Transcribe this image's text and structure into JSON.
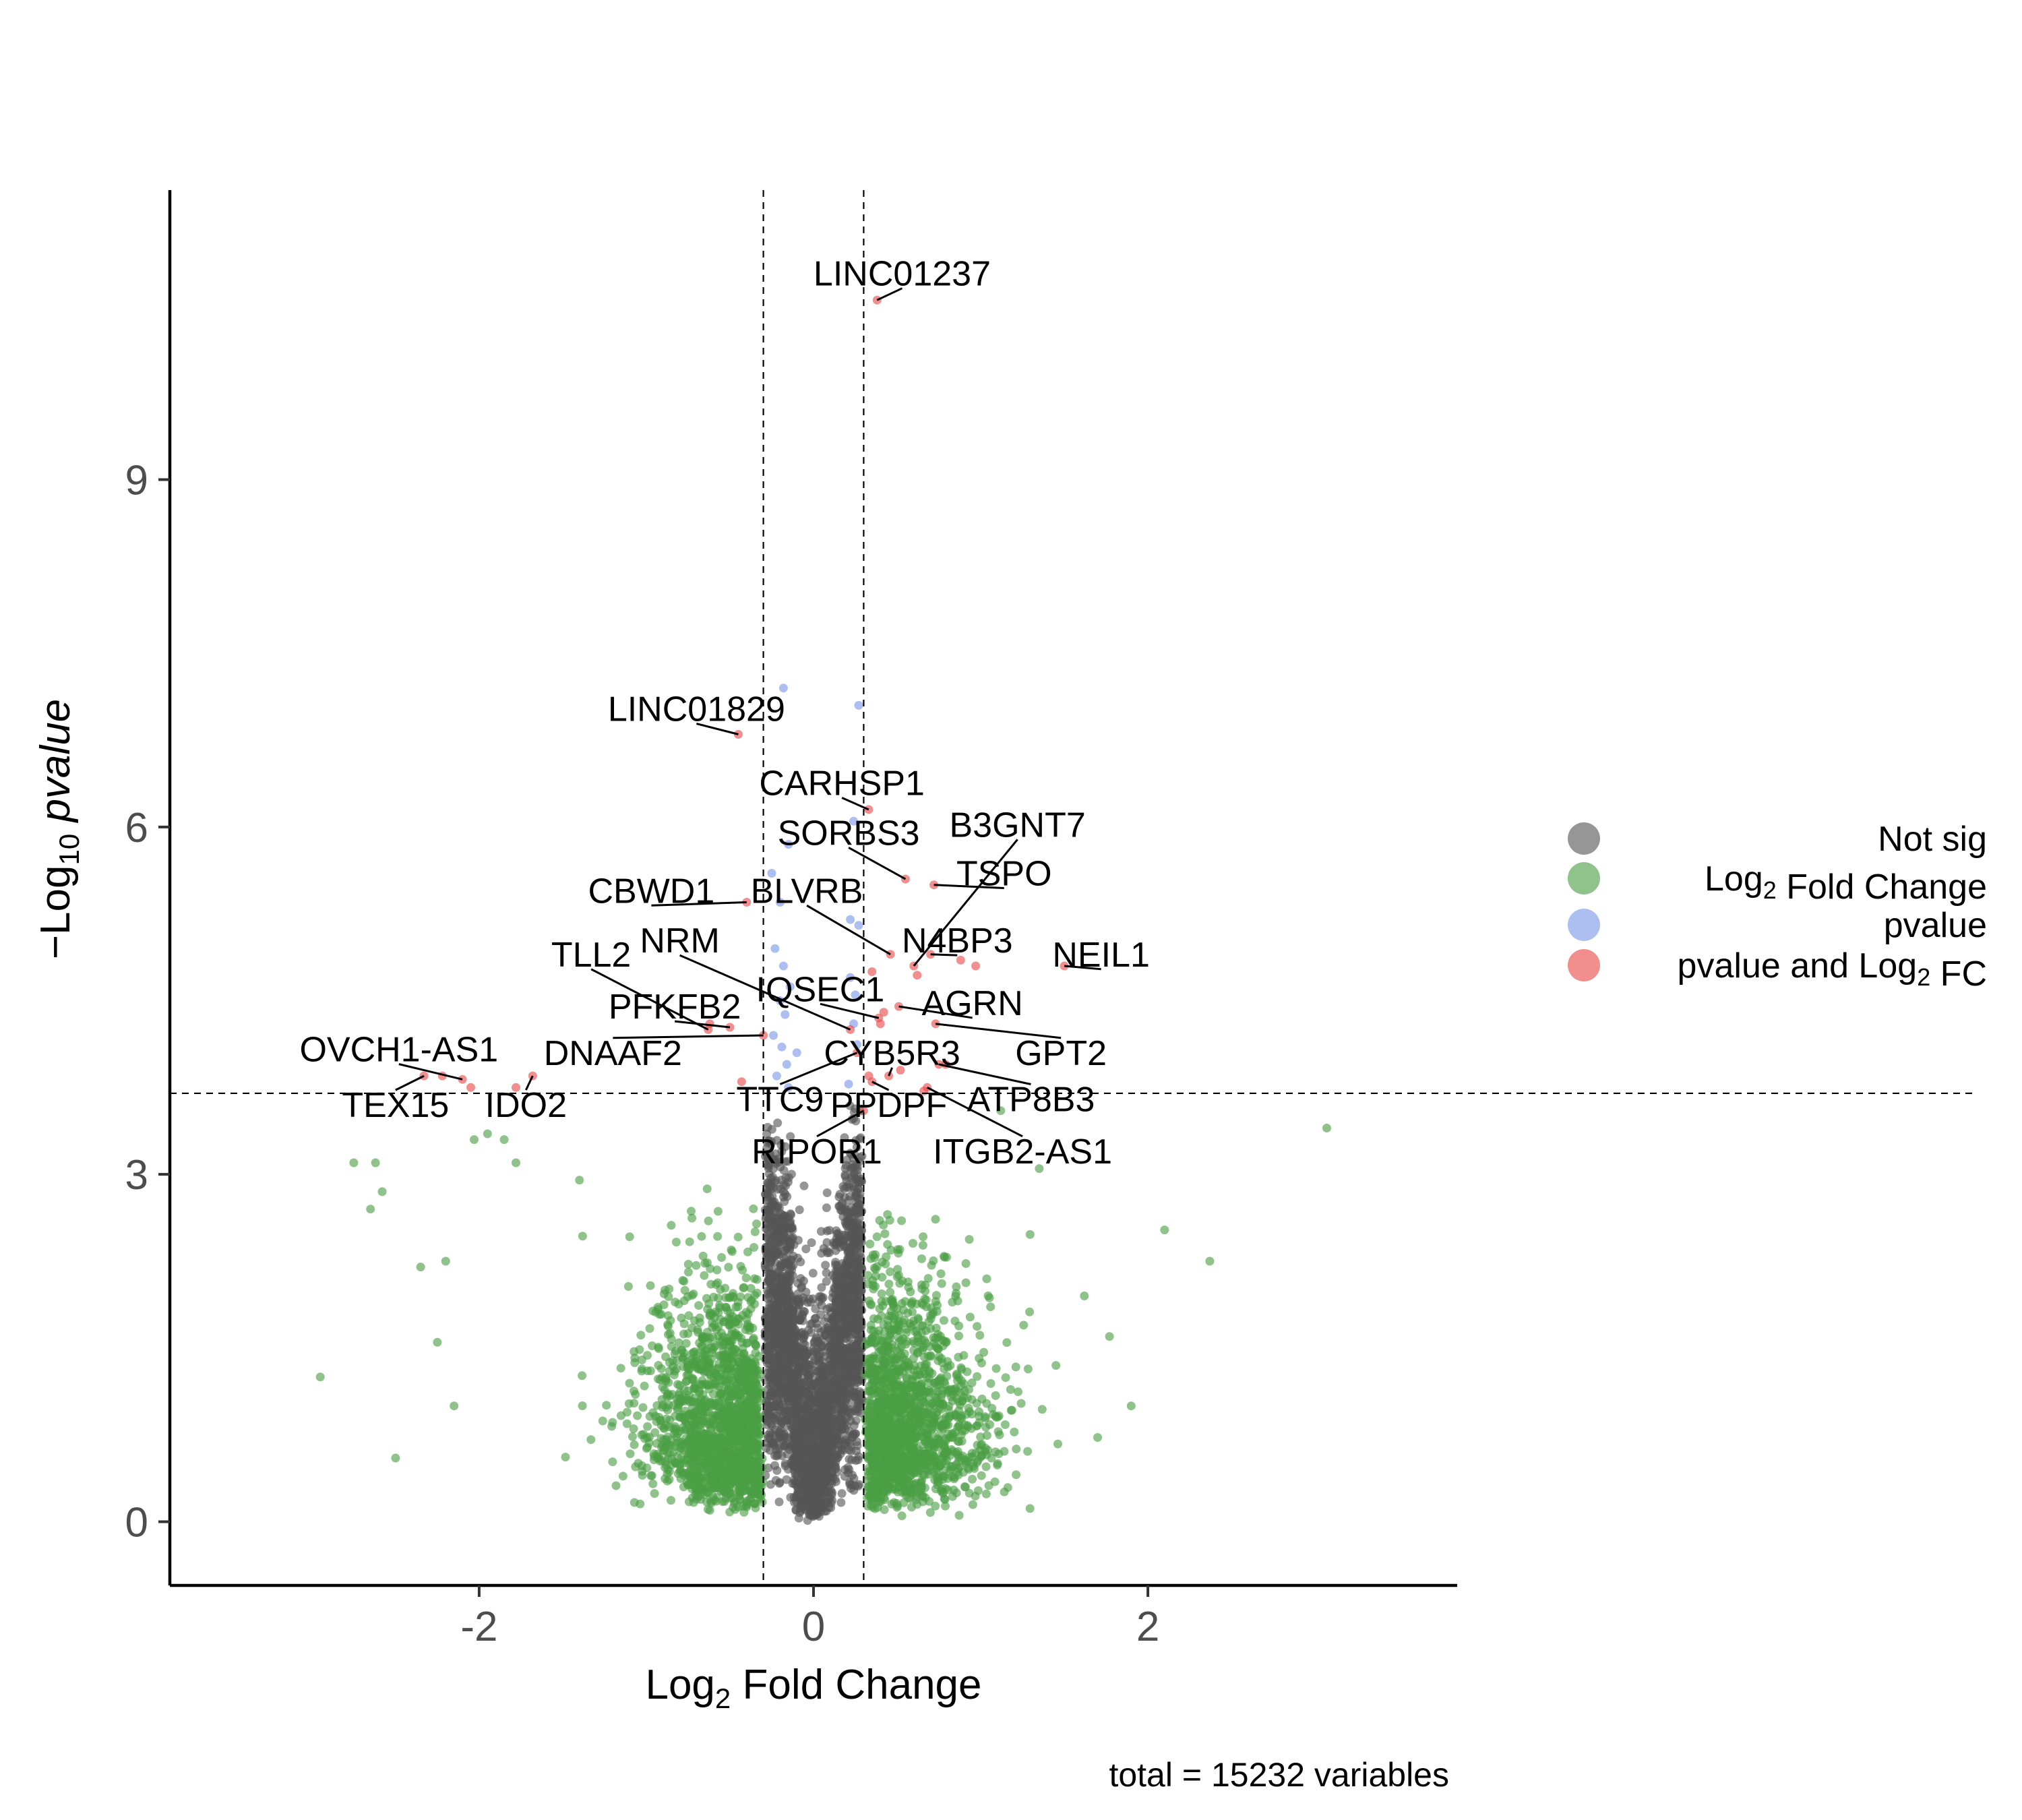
{
  "chart_data": {
    "type": "scatter",
    "xlabel": {
      "pre": "Log",
      "sub": "2",
      "post": " Fold Change"
    },
    "ylabel": {
      "pre": "−Log",
      "sub": "10",
      "post": " ",
      "ital": "pvalue"
    },
    "caption": "total = 15232 variables",
    "xlim": [
      -3.85,
      3.85
    ],
    "ylim": [
      -0.55,
      11.5
    ],
    "x_ticks": [
      -2,
      0,
      2
    ],
    "x_tick_labels": [
      "-2",
      "0",
      "2"
    ],
    "y_ticks": [
      0,
      3,
      6,
      9
    ],
    "y_tick_labels": [
      "0",
      "3",
      "6",
      "9"
    ],
    "fc_cutoff": 0.3,
    "p_cutoff_neglog10": 3.7,
    "grid": false,
    "legend_position": "right",
    "legend": [
      {
        "key": "ns",
        "parts": [
          {
            "t": "Not sig"
          }
        ]
      },
      {
        "key": "fc",
        "parts": [
          {
            "t": "Log"
          },
          {
            "t": "2",
            "sub": true
          },
          {
            "t": " Fold Change"
          }
        ]
      },
      {
        "key": "p",
        "parts": [
          {
            "t": "pvalue"
          }
        ]
      },
      {
        "key": "both",
        "parts": [
          {
            "t": "pvalue and Log"
          },
          {
            "t": "2",
            "sub": true
          },
          {
            "t": " FC"
          }
        ]
      }
    ],
    "colors": {
      "ns": "#555555",
      "fc": "#4a9e44",
      "p": "#7b96e8",
      "both": "#e84848"
    },
    "labeled_points": [
      {
        "name": "LINC01237",
        "x": 0.38,
        "y": 10.55,
        "lx": 0.53,
        "ly": 10.78
      },
      {
        "name": "LINC01829",
        "x": -0.45,
        "y": 6.8,
        "lx": -0.7,
        "ly": 7.02
      },
      {
        "name": "CARHSP1",
        "x": 0.33,
        "y": 6.15,
        "lx": 0.17,
        "ly": 6.38
      },
      {
        "name": "SORBS3",
        "x": 0.55,
        "y": 5.55,
        "lx": 0.21,
        "ly": 5.95
      },
      {
        "name": "B3GNT7",
        "x": 0.6,
        "y": 4.8,
        "lx": 1.22,
        "ly": 6.02
      },
      {
        "name": "TSPO",
        "x": 0.72,
        "y": 5.5,
        "lx": 1.14,
        "ly": 5.6
      },
      {
        "name": "CBWD1",
        "x": -0.4,
        "y": 5.35,
        "lx": -0.97,
        "ly": 5.45
      },
      {
        "name": "BLVRB",
        "x": 0.46,
        "y": 4.9,
        "lx": -0.04,
        "ly": 5.45
      },
      {
        "name": "N4BP3",
        "x": 0.7,
        "y": 4.9,
        "lx": 0.86,
        "ly": 5.02
      },
      {
        "name": "NRM",
        "x": 0.22,
        "y": 4.25,
        "lx": -0.8,
        "ly": 5.02
      },
      {
        "name": "TLL2",
        "x": -0.63,
        "y": 4.25,
        "lx": -1.33,
        "ly": 4.9
      },
      {
        "name": "NEIL1",
        "x": 1.5,
        "y": 4.8,
        "lx": 1.72,
        "ly": 4.9
      },
      {
        "name": "PFKFB2",
        "x": -0.5,
        "y": 4.27,
        "lx": -0.83,
        "ly": 4.45
      },
      {
        "name": "IQSEC1",
        "x": 0.39,
        "y": 4.35,
        "lx": 0.04,
        "ly": 4.6
      },
      {
        "name": "AGRN",
        "x": 0.51,
        "y": 4.45,
        "lx": 0.95,
        "ly": 4.48
      },
      {
        "name": "GPT2",
        "x": 0.73,
        "y": 4.3,
        "lx": 1.48,
        "ly": 4.05
      },
      {
        "name": "OVCH1-AS1",
        "x": -2.1,
        "y": 3.82,
        "lx": -2.48,
        "ly": 4.08
      },
      {
        "name": "DNAAF2",
        "x": -0.3,
        "y": 4.2,
        "lx": -1.2,
        "ly": 4.05
      },
      {
        "name": "CYB5R3",
        "x": 0.45,
        "y": 3.85,
        "lx": 0.47,
        "ly": 4.05
      },
      {
        "name": "TEX15",
        "x": -2.33,
        "y": 3.85,
        "lx": -2.5,
        "ly": 3.6
      },
      {
        "name": "IDO2",
        "x": -1.68,
        "y": 3.85,
        "lx": -1.72,
        "ly": 3.6
      },
      {
        "name": "TTC9",
        "x": 0.26,
        "y": 4.05,
        "lx": -0.2,
        "ly": 3.65
      },
      {
        "name": "PPDPF",
        "x": 0.35,
        "y": 3.8,
        "lx": 0.45,
        "ly": 3.6
      },
      {
        "name": "ATP8B3",
        "x": 0.75,
        "y": 3.95,
        "lx": 1.3,
        "ly": 3.65
      },
      {
        "name": "RIPOR1",
        "x": 0.3,
        "y": 3.55,
        "lx": 0.02,
        "ly": 3.2
      },
      {
        "name": "ITGB2-AS1",
        "x": 0.68,
        "y": 3.75,
        "lx": 1.25,
        "ly": 3.2
      }
    ],
    "extra_sig_points": [
      {
        "x": -2.22,
        "y": 3.85
      },
      {
        "x": -2.05,
        "y": 3.75
      },
      {
        "x": -1.78,
        "y": 3.75
      },
      {
        "x": -0.62,
        "y": 4.3
      },
      {
        "x": -0.43,
        "y": 3.8
      },
      {
        "x": 0.88,
        "y": 4.85
      },
      {
        "x": 0.62,
        "y": 4.72
      },
      {
        "x": 0.42,
        "y": 4.4
      },
      {
        "x": 0.79,
        "y": 3.95
      },
      {
        "x": 0.52,
        "y": 3.9
      },
      {
        "x": 0.33,
        "y": 3.85
      },
      {
        "x": 0.66,
        "y": 3.72
      },
      {
        "x": 0.35,
        "y": 4.75
      },
      {
        "x": 0.4,
        "y": 4.3
      },
      {
        "x": 0.97,
        "y": 4.8
      }
    ],
    "p_only_points": [
      {
        "x": -0.18,
        "y": 7.2
      },
      {
        "x": 0.27,
        "y": 7.05
      },
      {
        "x": 0.24,
        "y": 6.05
      },
      {
        "x": -0.15,
        "y": 5.85
      },
      {
        "x": -0.25,
        "y": 5.6
      },
      {
        "x": -0.2,
        "y": 5.35
      },
      {
        "x": 0.22,
        "y": 5.2
      },
      {
        "x": 0.27,
        "y": 5.15
      },
      {
        "x": -0.23,
        "y": 4.95
      },
      {
        "x": -0.18,
        "y": 4.8
      },
      {
        "x": -0.14,
        "y": 4.62
      },
      {
        "x": -0.2,
        "y": 4.5
      },
      {
        "x": 0.22,
        "y": 4.7
      },
      {
        "x": 0.25,
        "y": 4.55
      },
      {
        "x": -0.17,
        "y": 4.38
      },
      {
        "x": -0.24,
        "y": 4.2
      },
      {
        "x": -0.19,
        "y": 4.1
      },
      {
        "x": -0.16,
        "y": 3.95
      },
      {
        "x": -0.22,
        "y": 3.85
      },
      {
        "x": -0.15,
        "y": 3.75
      },
      {
        "x": 0.24,
        "y": 4.3
      },
      {
        "x": 0.26,
        "y": 4.12
      },
      {
        "x": 0.21,
        "y": 3.78
      },
      {
        "x": -0.1,
        "y": 4.05
      }
    ],
    "fc_outliers": [
      {
        "x": 3.07,
        "y": 3.4
      },
      {
        "x": 2.37,
        "y": 2.25
      },
      {
        "x": 2.1,
        "y": 2.52
      },
      {
        "x": 1.9,
        "y": 1.0
      },
      {
        "x": 1.77,
        "y": 1.6
      },
      {
        "x": 1.62,
        "y": 1.95
      },
      {
        "x": -2.95,
        "y": 1.25
      },
      {
        "x": -2.65,
        "y": 2.7
      },
      {
        "x": -2.75,
        "y": 3.1
      },
      {
        "x": -2.62,
        "y": 3.1
      },
      {
        "x": -2.5,
        "y": 0.55
      },
      {
        "x": -2.35,
        "y": 2.2
      },
      {
        "x": -2.25,
        "y": 1.55
      },
      {
        "x": -2.15,
        "y": 1.0
      },
      {
        "x": -2.2,
        "y": 2.25
      },
      {
        "x": -2.03,
        "y": 3.3
      },
      {
        "x": -1.95,
        "y": 3.35
      },
      {
        "x": -1.78,
        "y": 3.1
      },
      {
        "x": -1.85,
        "y": 3.3
      },
      {
        "x": -2.58,
        "y": 2.85
      },
      {
        "x": 1.35,
        "y": 3.05
      },
      {
        "x": 1.12,
        "y": 3.55
      },
      {
        "x": 1.45,
        "y": 1.35
      },
      {
        "x": -1.4,
        "y": 2.95
      }
    ]
  }
}
